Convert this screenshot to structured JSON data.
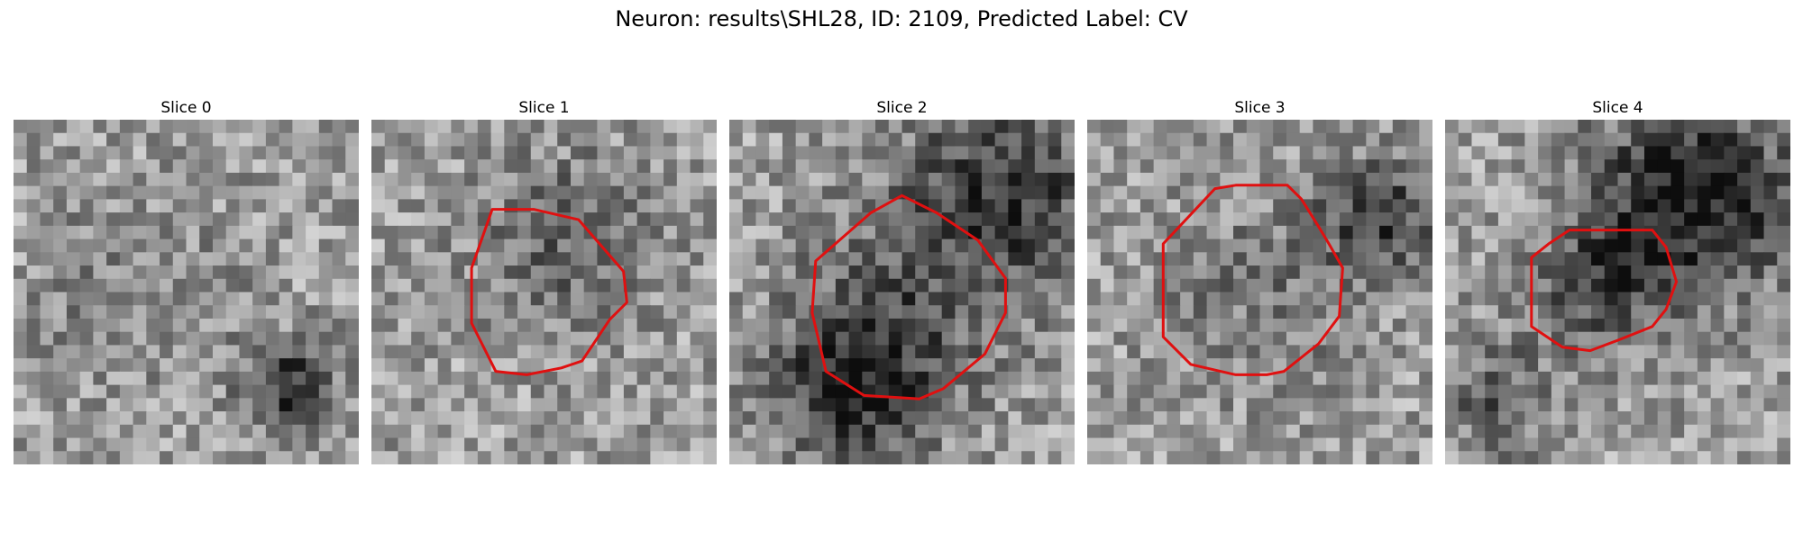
{
  "figure": {
    "title": "Neuron: results\\SHL28, ID: 2109, Predicted Label: CV",
    "contour_color": "#e01010",
    "colormap": "gray"
  },
  "panels": [
    {
      "title": "Slice 0",
      "seed": 11,
      "has_contour": false,
      "dark_regions": [
        {
          "c": 0.8,
          "r": 0.78,
          "s": 0.09,
          "k": 0.45
        },
        {
          "c": 0.35,
          "r": 0.5,
          "s": 0.2,
          "k": 0.12
        }
      ],
      "contour": []
    },
    {
      "title": "Slice 1",
      "seed": 23,
      "has_contour": true,
      "dark_regions": [
        {
          "c": 0.55,
          "r": 0.35,
          "s": 0.18,
          "k": 0.22
        }
      ],
      "contour": [
        [
          0.35,
          0.26
        ],
        [
          0.47,
          0.26
        ],
        [
          0.6,
          0.29
        ],
        [
          0.73,
          0.44
        ],
        [
          0.74,
          0.53
        ],
        [
          0.69,
          0.58
        ],
        [
          0.61,
          0.7
        ],
        [
          0.55,
          0.72
        ],
        [
          0.45,
          0.74
        ],
        [
          0.36,
          0.73
        ],
        [
          0.29,
          0.59
        ],
        [
          0.29,
          0.43
        ]
      ]
    },
    {
      "title": "Slice 2",
      "seed": 37,
      "has_contour": true,
      "dark_regions": [
        {
          "c": 0.35,
          "r": 0.78,
          "s": 0.16,
          "k": 0.4
        },
        {
          "c": 0.8,
          "r": 0.2,
          "s": 0.2,
          "k": 0.4
        },
        {
          "c": 0.5,
          "r": 0.55,
          "s": 0.22,
          "k": 0.22
        }
      ],
      "contour": [
        [
          0.41,
          0.27
        ],
        [
          0.5,
          0.22
        ],
        [
          0.6,
          0.27
        ],
        [
          0.72,
          0.35
        ],
        [
          0.8,
          0.46
        ],
        [
          0.8,
          0.56
        ],
        [
          0.74,
          0.68
        ],
        [
          0.62,
          0.78
        ],
        [
          0.55,
          0.81
        ],
        [
          0.39,
          0.8
        ],
        [
          0.28,
          0.73
        ],
        [
          0.24,
          0.56
        ],
        [
          0.25,
          0.41
        ]
      ]
    },
    {
      "title": "Slice 3",
      "seed": 53,
      "has_contour": true,
      "dark_regions": [
        {
          "c": 0.85,
          "r": 0.28,
          "s": 0.12,
          "k": 0.4
        },
        {
          "c": 0.5,
          "r": 0.5,
          "s": 0.2,
          "k": 0.15
        }
      ],
      "contour": [
        [
          0.37,
          0.2
        ],
        [
          0.43,
          0.19
        ],
        [
          0.58,
          0.19
        ],
        [
          0.62,
          0.23
        ],
        [
          0.67,
          0.31
        ],
        [
          0.7,
          0.36
        ],
        [
          0.74,
          0.43
        ],
        [
          0.73,
          0.57
        ],
        [
          0.67,
          0.65
        ],
        [
          0.57,
          0.73
        ],
        [
          0.52,
          0.74
        ],
        [
          0.43,
          0.74
        ],
        [
          0.3,
          0.71
        ],
        [
          0.22,
          0.63
        ],
        [
          0.22,
          0.36
        ]
      ]
    },
    {
      "title": "Slice 4",
      "seed": 71,
      "has_contour": true,
      "dark_regions": [
        {
          "c": 0.72,
          "r": 0.22,
          "s": 0.2,
          "k": 0.55
        },
        {
          "c": 0.45,
          "r": 0.48,
          "s": 0.12,
          "k": 0.35
        },
        {
          "c": 0.15,
          "r": 0.8,
          "s": 0.12,
          "k": 0.25
        }
      ],
      "contour": [
        [
          0.3,
          0.36
        ],
        [
          0.36,
          0.32
        ],
        [
          0.6,
          0.32
        ],
        [
          0.64,
          0.37
        ],
        [
          0.67,
          0.47
        ],
        [
          0.64,
          0.55
        ],
        [
          0.6,
          0.6
        ],
        [
          0.5,
          0.64
        ],
        [
          0.42,
          0.67
        ],
        [
          0.34,
          0.66
        ],
        [
          0.25,
          0.6
        ],
        [
          0.25,
          0.4
        ]
      ]
    }
  ]
}
